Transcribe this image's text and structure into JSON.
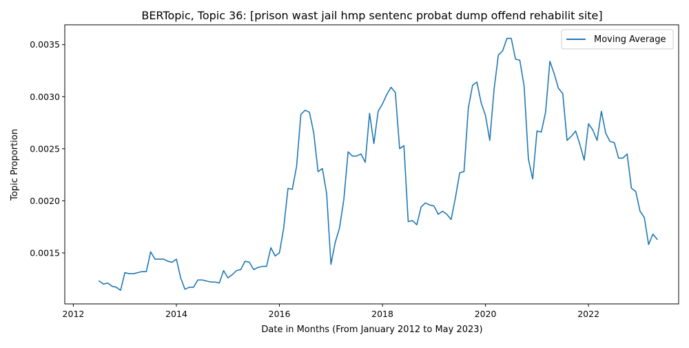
{
  "chart_data": {
    "type": "line",
    "title": "BERTopic, Topic 36: [prison wast jail hmp sentenc probat dump offend rehabilit site]",
    "xlabel": "Date in Months (From January 2012 to May 2023)",
    "ylabel": "Topic Proportion",
    "xlim": [
      "2011-11-01",
      "2023-10-01"
    ],
    "ylim": [
      0.00101,
      0.00369
    ],
    "xticks": [
      {
        "date": "2012-01-01",
        "label": "2012"
      },
      {
        "date": "2014-01-01",
        "label": "2014"
      },
      {
        "date": "2016-01-01",
        "label": "2016"
      },
      {
        "date": "2018-01-01",
        "label": "2018"
      },
      {
        "date": "2020-01-01",
        "label": "2020"
      },
      {
        "date": "2022-01-01",
        "label": "2022"
      }
    ],
    "yticks": [
      {
        "value": 0.0015,
        "label": "0.0015"
      },
      {
        "value": 0.002,
        "label": "0.0020"
      },
      {
        "value": 0.0025,
        "label": "0.0025"
      },
      {
        "value": 0.003,
        "label": "0.0030"
      },
      {
        "value": 0.0035,
        "label": "0.0035"
      }
    ],
    "grid": false,
    "legend_position": "top-right",
    "series": [
      {
        "name": "Moving Average",
        "color": "#1f77b4",
        "x": [
          "2012-07",
          "2012-08",
          "2012-09",
          "2012-10",
          "2012-11",
          "2012-12",
          "2013-01",
          "2013-02",
          "2013-03",
          "2013-04",
          "2013-05",
          "2013-06",
          "2013-07",
          "2013-08",
          "2013-09",
          "2013-10",
          "2013-11",
          "2013-12",
          "2014-01",
          "2014-02",
          "2014-03",
          "2014-04",
          "2014-05",
          "2014-06",
          "2014-07",
          "2014-08",
          "2014-09",
          "2014-10",
          "2014-11",
          "2014-12",
          "2015-01",
          "2015-02",
          "2015-03",
          "2015-04",
          "2015-05",
          "2015-06",
          "2015-07",
          "2015-08",
          "2015-09",
          "2015-10",
          "2015-11",
          "2015-12",
          "2016-01",
          "2016-02",
          "2016-03",
          "2016-04",
          "2016-05",
          "2016-06",
          "2016-07",
          "2016-08",
          "2016-09",
          "2016-10",
          "2016-11",
          "2016-12",
          "2017-01",
          "2017-02",
          "2017-03",
          "2017-04",
          "2017-05",
          "2017-06",
          "2017-07",
          "2017-08",
          "2017-09",
          "2017-10",
          "2017-11",
          "2017-12",
          "2018-01",
          "2018-02",
          "2018-03",
          "2018-04",
          "2018-05",
          "2018-06",
          "2018-07",
          "2018-08",
          "2018-09",
          "2018-10",
          "2018-11",
          "2018-12",
          "2019-01",
          "2019-02",
          "2019-03",
          "2019-04",
          "2019-05",
          "2019-06",
          "2019-07",
          "2019-08",
          "2019-09",
          "2019-10",
          "2019-11",
          "2019-12",
          "2020-01",
          "2020-02",
          "2020-03",
          "2020-04",
          "2020-05",
          "2020-06",
          "2020-07",
          "2020-08",
          "2020-09",
          "2020-10",
          "2020-11",
          "2020-12",
          "2021-01",
          "2021-02",
          "2021-03",
          "2021-04",
          "2021-05",
          "2021-06",
          "2021-07",
          "2021-08",
          "2021-09",
          "2021-10",
          "2021-11",
          "2021-12",
          "2022-01",
          "2022-02",
          "2022-03",
          "2022-04",
          "2022-05",
          "2022-06",
          "2022-07",
          "2022-08",
          "2022-09",
          "2022-10",
          "2022-11",
          "2022-12",
          "2023-01",
          "2023-02",
          "2023-03",
          "2023-04",
          "2023-05"
        ],
        "y": [
          0.00123,
          0.0012,
          0.00121,
          0.00118,
          0.00117,
          0.00114,
          0.00131,
          0.0013,
          0.0013,
          0.00131,
          0.00132,
          0.00132,
          0.00151,
          0.00144,
          0.00144,
          0.00144,
          0.00142,
          0.00141,
          0.00144,
          0.00126,
          0.00115,
          0.00117,
          0.00117,
          0.00124,
          0.00124,
          0.00123,
          0.00122,
          0.00122,
          0.00121,
          0.00133,
          0.00126,
          0.00129,
          0.00133,
          0.00134,
          0.00142,
          0.00141,
          0.00134,
          0.00136,
          0.00137,
          0.00137,
          0.00155,
          0.00147,
          0.0015,
          0.00174,
          0.00212,
          0.00211,
          0.00233,
          0.00283,
          0.00287,
          0.00285,
          0.00265,
          0.00228,
          0.00231,
          0.00207,
          0.00139,
          0.0016,
          0.00174,
          0.00201,
          0.00247,
          0.00243,
          0.00243,
          0.00245,
          0.00237,
          0.00284,
          0.00255,
          0.00286,
          0.00293,
          0.00302,
          0.00309,
          0.00304,
          0.0025,
          0.00253,
          0.0018,
          0.00181,
          0.00177,
          0.00194,
          0.00198,
          0.00196,
          0.00195,
          0.00187,
          0.0019,
          0.00187,
          0.00182,
          0.00203,
          0.00227,
          0.00228,
          0.00289,
          0.00311,
          0.00314,
          0.00294,
          0.00282,
          0.00258,
          0.00307,
          0.0034,
          0.00344,
          0.00356,
          0.00356,
          0.00336,
          0.00335,
          0.0031,
          0.0024,
          0.00221,
          0.00267,
          0.00266,
          0.00285,
          0.00334,
          0.00322,
          0.00308,
          0.00303,
          0.00258,
          0.00262,
          0.00267,
          0.00254,
          0.00239,
          0.00274,
          0.00268,
          0.00258,
          0.00286,
          0.00265,
          0.00257,
          0.00256,
          0.00241,
          0.00241,
          0.00245,
          0.00212,
          0.00209,
          0.0019,
          0.00184,
          0.00158,
          0.00168,
          0.00163
        ]
      }
    ]
  }
}
